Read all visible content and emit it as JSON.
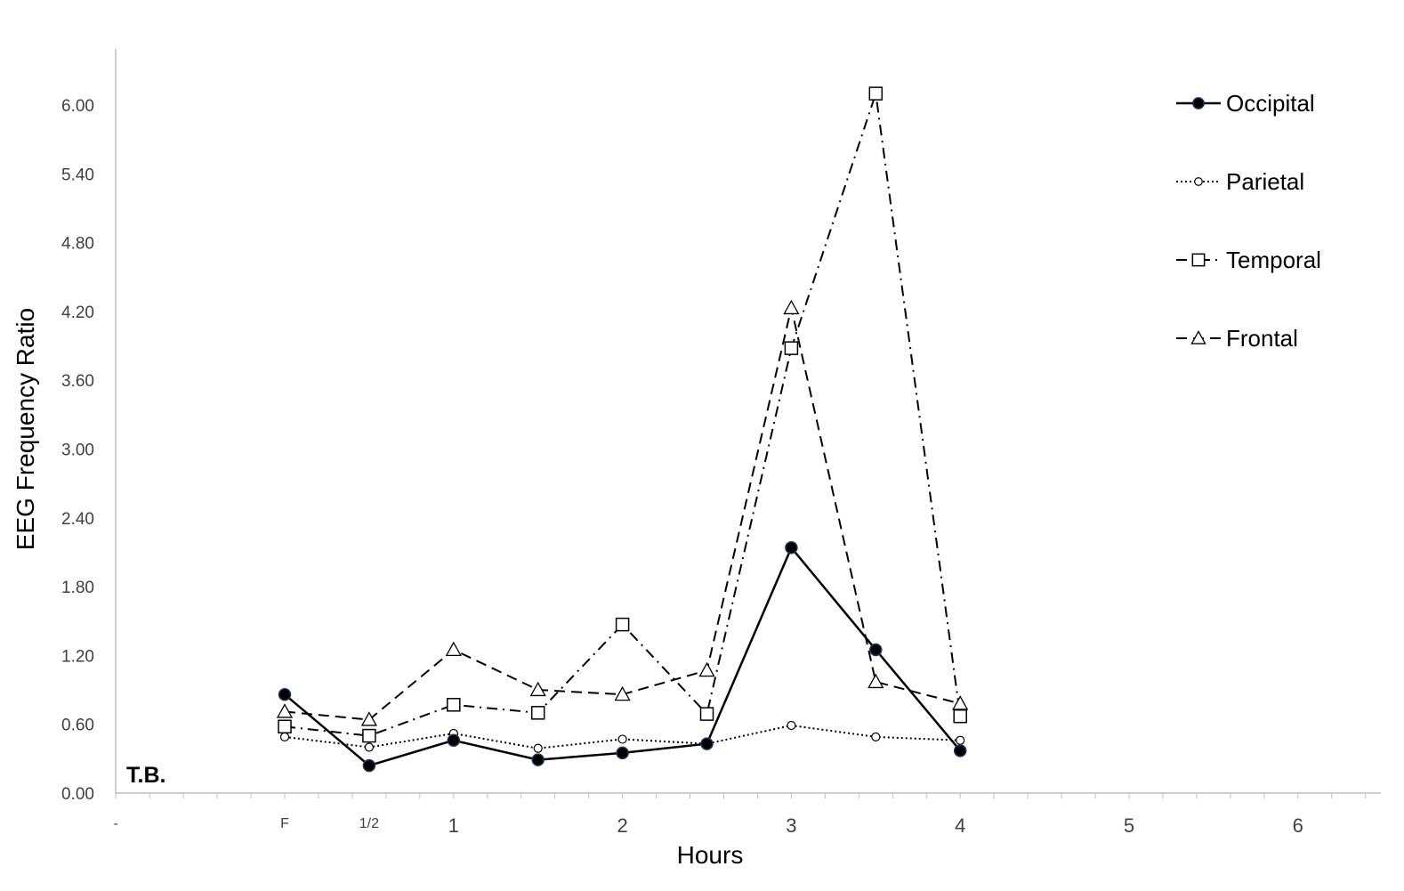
{
  "chart_data": {
    "type": "line",
    "xlabel": "Hours",
    "ylabel": "EEG Frequency Ratio",
    "annotation": "T.B.",
    "ylim": [
      0,
      6.0
    ],
    "yticks": [
      "0.00",
      "0.60",
      "1.20",
      "1.80",
      "2.40",
      "3.00",
      "3.60",
      "4.20",
      "4.80",
      "5.40",
      "6.00"
    ],
    "xlim": [
      -1.0,
      6.5
    ],
    "xticks": [
      {
        "label": "-",
        "x": -1.0,
        "size": "small"
      },
      {
        "label": "F",
        "x": 0.0,
        "size": "small"
      },
      {
        "label": "1/2",
        "x": 0.5,
        "size": "small"
      },
      {
        "label": "1",
        "x": 1.0,
        "size": "big"
      },
      {
        "label": "2",
        "x": 2.0,
        "size": "big"
      },
      {
        "label": "3",
        "x": 3.0,
        "size": "big"
      },
      {
        "label": "4",
        "x": 4.0,
        "size": "big"
      },
      {
        "label": "5",
        "x": 5.0,
        "size": "big"
      },
      {
        "label": "6",
        "x": 6.0,
        "size": "big"
      }
    ],
    "x": [
      0,
      0.5,
      1,
      1.5,
      2,
      2.5,
      3,
      3.5,
      4
    ],
    "legend_position": "top-right",
    "grid": false,
    "series": [
      {
        "name": "Occipital",
        "values": [
          0.86,
          0.24,
          0.46,
          0.29,
          0.35,
          0.43,
          2.14,
          1.25,
          0.37
        ],
        "marker": "filled-circle",
        "dash": "solid",
        "color": "#000000"
      },
      {
        "name": "Parietal",
        "values": [
          0.49,
          0.4,
          0.52,
          0.39,
          0.47,
          0.43,
          0.59,
          0.49,
          0.46
        ],
        "marker": "small-circle",
        "dash": "dotted",
        "color": "#000000"
      },
      {
        "name": "Temporal",
        "values": [
          0.58,
          0.5,
          0.77,
          0.7,
          1.47,
          0.69,
          3.88,
          6.1,
          0.67
        ],
        "marker": "square",
        "dash": "dash-dot",
        "color": "#000000"
      },
      {
        "name": "Frontal",
        "values": [
          0.71,
          0.64,
          1.25,
          0.9,
          0.86,
          1.07,
          4.23,
          0.97,
          0.78
        ],
        "marker": "triangle",
        "dash": "dashed",
        "color": "#000000"
      }
    ]
  }
}
